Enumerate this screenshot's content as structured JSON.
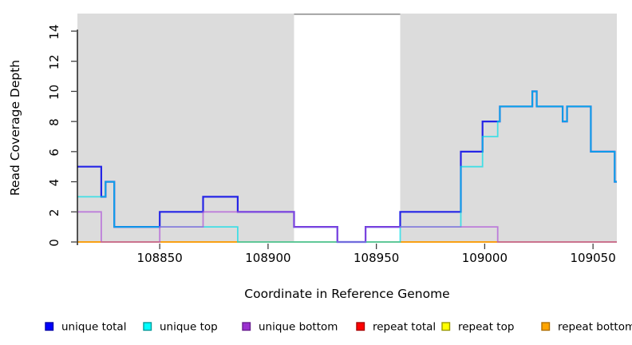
{
  "chart_data": {
    "type": "line",
    "subtype": "step-coverage-plot",
    "title": "",
    "xlabel": "Coordinate in Reference Genome",
    "ylabel": "Read Coverage Depth",
    "xlim": [
      108812,
      109061
    ],
    "ylim": [
      0,
      15.2
    ],
    "x_ticks": [
      108850,
      108900,
      108950,
      109000,
      109050
    ],
    "y_ticks": [
      0,
      2,
      4,
      6,
      8,
      10,
      12,
      14
    ],
    "grid": false,
    "legend_position": "bottom",
    "shaded_regions": [
      {
        "from": 108812,
        "to": 108912,
        "color": "#dcdcdc"
      },
      {
        "from": 108961,
        "to": 109061,
        "color": "#dcdcdc"
      }
    ],
    "white_gap": {
      "from": 108912,
      "to": 108961,
      "top_border_color": "#8a8a8a"
    },
    "series": [
      {
        "name": "repeat total",
        "color": "#dc1f1f",
        "opacity": 0.85,
        "width": 1.6,
        "steps": [
          [
            108812,
            0
          ],
          [
            109061,
            0
          ]
        ]
      },
      {
        "name": "repeat top",
        "color": "#f0e000",
        "opacity": 0.7,
        "width": 1.6,
        "steps": [
          [
            108812,
            0
          ],
          [
            109061,
            0
          ]
        ]
      },
      {
        "name": "repeat bottom",
        "color": "#ff9c00",
        "opacity": 0.8,
        "width": 1.8,
        "steps": [
          [
            108812,
            0
          ],
          [
            109061,
            0
          ]
        ]
      },
      {
        "name": "unique total",
        "color": "#1a1ae6",
        "opacity": 0.95,
        "width": 2.2,
        "steps": [
          [
            108812,
            5
          ],
          [
            108823,
            3
          ],
          [
            108825,
            4
          ],
          [
            108829,
            1
          ],
          [
            108850,
            2
          ],
          [
            108870,
            3
          ],
          [
            108886,
            2
          ],
          [
            108912,
            1
          ],
          [
            108932,
            0
          ],
          [
            108945,
            1
          ],
          [
            108961,
            2
          ],
          [
            108989,
            6
          ],
          [
            108999,
            8
          ],
          [
            109007,
            9
          ],
          [
            109022,
            10
          ],
          [
            109024,
            9
          ],
          [
            109036,
            8
          ],
          [
            109038,
            9
          ],
          [
            109049,
            6
          ],
          [
            109060,
            4
          ],
          [
            109061,
            4
          ]
        ]
      },
      {
        "name": "unique top",
        "color": "#00dee8",
        "opacity": 0.7,
        "width": 1.8,
        "steps": [
          [
            108812,
            3
          ],
          [
            108825,
            4
          ],
          [
            108829,
            1
          ],
          [
            108886,
            0
          ],
          [
            108961,
            1
          ],
          [
            108989,
            5
          ],
          [
            108999,
            7
          ],
          [
            109006,
            8
          ],
          [
            109007,
            9
          ],
          [
            109022,
            10
          ],
          [
            109024,
            9
          ],
          [
            109036,
            8
          ],
          [
            109038,
            9
          ],
          [
            109049,
            6
          ],
          [
            109060,
            4
          ],
          [
            109061,
            4
          ]
        ]
      },
      {
        "name": "unique bottom",
        "color": "#ae54d8",
        "opacity": 0.7,
        "width": 1.8,
        "steps": [
          [
            108812,
            2
          ],
          [
            108823,
            0
          ],
          [
            108850,
            1
          ],
          [
            108870,
            2
          ],
          [
            108912,
            1
          ],
          [
            108932,
            0
          ],
          [
            108945,
            1
          ],
          [
            109006,
            0
          ],
          [
            109061,
            0
          ]
        ]
      }
    ],
    "legend": [
      {
        "label": "unique total",
        "fill": "#0000ff",
        "border": "#0000a8"
      },
      {
        "label": "unique top",
        "fill": "#00ffff",
        "border": "#009a9a"
      },
      {
        "label": "unique bottom",
        "fill": "#9b30d0",
        "border": "#6a1f90"
      },
      {
        "label": "repeat total",
        "fill": "#ff0000",
        "border": "#a80000"
      },
      {
        "label": "repeat top",
        "fill": "#ffff00",
        "border": "#9a9a00"
      },
      {
        "label": "repeat bottom",
        "fill": "#ffa500",
        "border": "#b06f00"
      }
    ]
  }
}
